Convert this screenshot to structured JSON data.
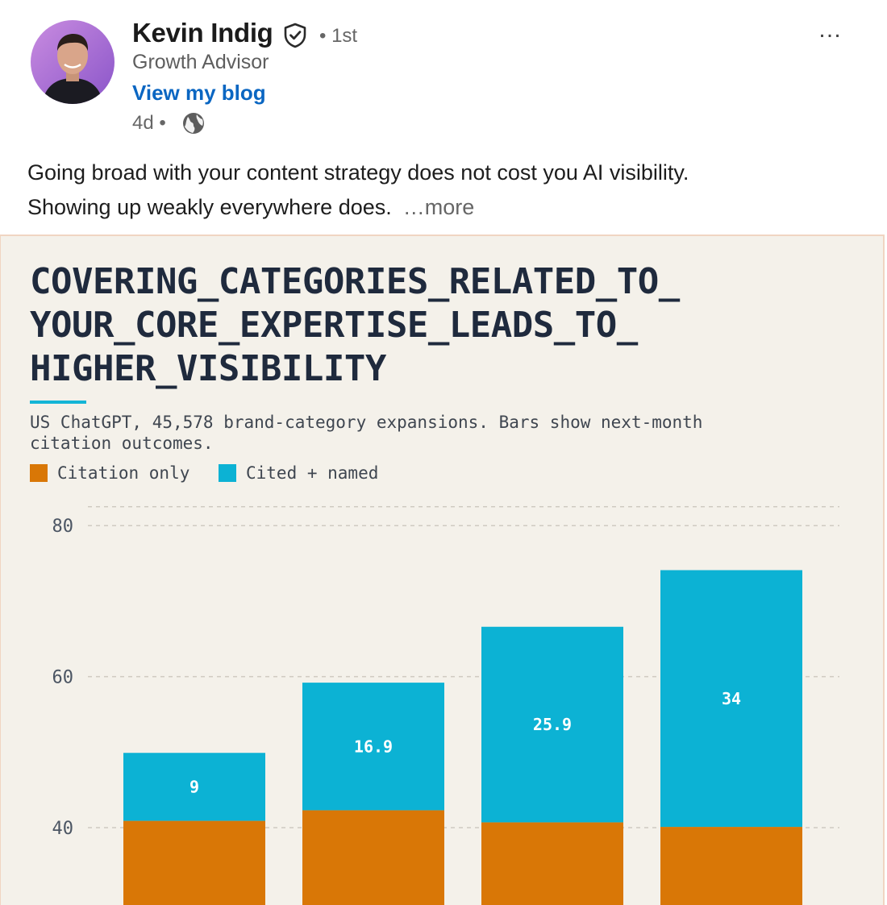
{
  "post": {
    "author": {
      "name": "Kevin Indig",
      "connection": "• 1st",
      "headline": "Growth Advisor",
      "link_label": "View my blog",
      "time": "4d •",
      "verified_icon": "shield-check-icon",
      "visibility_icon": "globe-icon"
    },
    "menu_icon": "ellipsis-icon",
    "menu_label": "…",
    "text": {
      "line1": "Going broad with your content strategy does not cost you AI visibility.",
      "line2": "Showing up weakly everywhere does.",
      "more": "…more"
    }
  },
  "chart_data": {
    "type": "bar",
    "stacked": true,
    "title_lines": [
      "COVERING_CATEGORIES_RELATED_TO_",
      "YOUR_CORE_EXPERTISE_LEADS_TO_",
      "HIGHER_VISIBILITY"
    ],
    "subtitle_lines": [
      "US ChatGPT, 45,578 brand-category expansions. Bars show next-month",
      "citation outcomes."
    ],
    "legend": [
      {
        "label": "Citation only",
        "color": "#d97706"
      },
      {
        "label": "Cited + named",
        "color": "#0cb2d4"
      }
    ],
    "y_ticks": [
      40,
      60,
      80
    ],
    "ylim_visible": [
      32,
      85
    ],
    "grid": true,
    "series": [
      {
        "name": "Citation only",
        "color": "#d97706",
        "values": [
          40.9,
          42.3,
          40.7,
          40.1
        ]
      },
      {
        "name": "Cited + named",
        "color": "#0cb2d4",
        "values": [
          9,
          16.9,
          25.9,
          34
        ],
        "labels": [
          "9",
          "16.9",
          "25.9",
          "34"
        ]
      }
    ]
  }
}
